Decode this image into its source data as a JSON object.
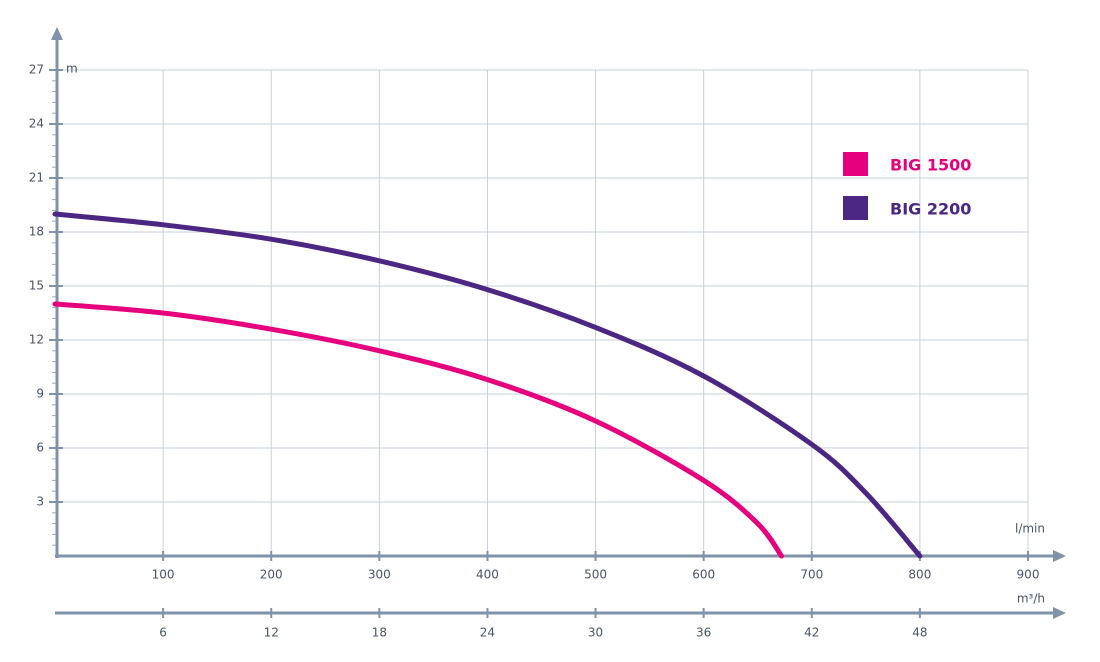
{
  "chart_data": {
    "type": "line",
    "y_label": "m",
    "x_label": "l/min",
    "x2_label": "m³/h",
    "xlim": [
      0,
      900
    ],
    "xticks": [
      100,
      200,
      300,
      400,
      500,
      600,
      700,
      800,
      900
    ],
    "x2lim": [
      0,
      54
    ],
    "x2ticks": [
      6,
      12,
      18,
      24,
      30,
      36,
      42,
      48
    ],
    "ylim": [
      0,
      27
    ],
    "yticks": [
      3,
      6,
      9,
      12,
      15,
      18,
      21,
      24,
      27
    ],
    "grid": true,
    "legend": "upper right",
    "series": [
      {
        "name": "BIG 1500",
        "color": "#e6007e",
        "x": [
          0,
          100,
          200,
          300,
          400,
          500,
          600,
          650,
          672
        ],
        "values": [
          14,
          13.5,
          12.6,
          11.4,
          9.8,
          7.5,
          4.2,
          1.8,
          0
        ]
      },
      {
        "name": "BIG 2200",
        "color": "#4b2683",
        "x": [
          0,
          100,
          200,
          300,
          400,
          500,
          600,
          700,
          750,
          800
        ],
        "values": [
          19,
          18.4,
          17.6,
          16.4,
          14.8,
          12.7,
          10.0,
          6.2,
          3.5,
          0
        ]
      }
    ]
  }
}
